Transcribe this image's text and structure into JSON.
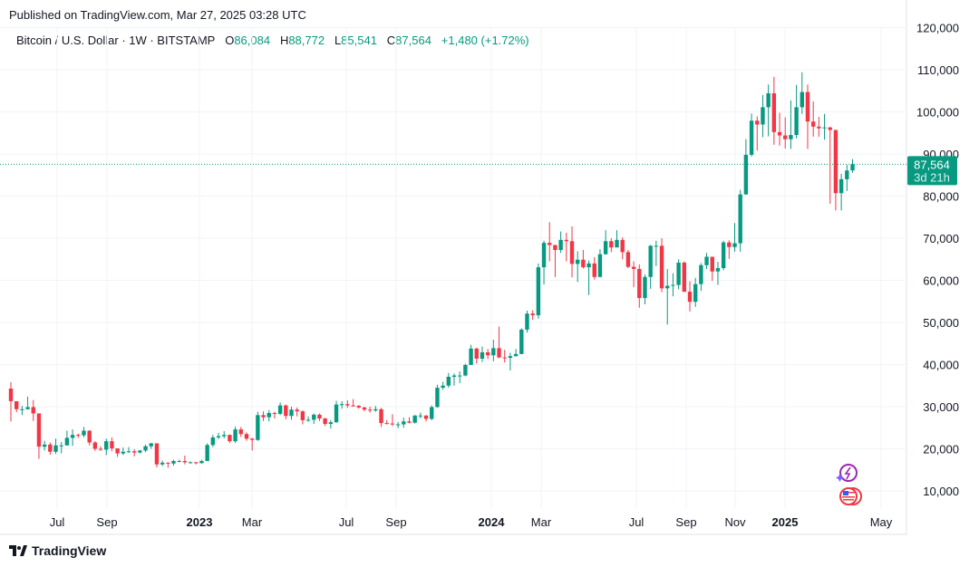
{
  "header": {
    "published": "Published on TradingView.com, Mar 27, 2025 03:28 UTC",
    "symbol": "Bitcoin / U.S. Dollar · 1W · BITSTAMP",
    "o_label": "O",
    "o_value": "86,084",
    "h_label": "H",
    "h_value": "88,772",
    "l_label": "L",
    "l_value": "85,541",
    "c_label": "C",
    "c_value": "87,564",
    "change": "+1,480 (+1.72%)"
  },
  "price_tag": {
    "price": "87,564",
    "countdown": "3d 21h"
  },
  "footer": {
    "brand": "TradingView"
  },
  "colors": {
    "up": "#089981",
    "down": "#f23645",
    "grid": "#f0f3fa",
    "text": "#131722"
  },
  "icons": [
    "lightning-event-icon",
    "us-flag-event-icon",
    "tradingview-logo-icon"
  ],
  "chart_data": {
    "type": "candlestick",
    "interval": "1W",
    "y_ticks": [
      10000,
      20000,
      30000,
      40000,
      50000,
      60000,
      70000,
      80000,
      90000,
      100000,
      110000,
      120000
    ],
    "y_tick_labels": [
      "10,000",
      "20,000",
      "30,000",
      "40,000",
      "50,000",
      "60,000",
      "70,000",
      "80,000",
      "90,000",
      "100,000",
      "110,000",
      "120,000"
    ],
    "x_tick_labels": [
      "Jul",
      "Sep",
      "2023",
      "Mar",
      "Jul",
      "Sep",
      "2024",
      "Mar",
      "Jul",
      "Sep",
      "Nov",
      "2025",
      "May"
    ],
    "last_price": 87564,
    "grid": true,
    "candles_ohlc": [
      [
        34300,
        35800,
        26500,
        31300
      ],
      [
        31300,
        31000,
        28700,
        29400
      ],
      [
        29400,
        30200,
        28000,
        29400
      ],
      [
        29400,
        32400,
        29300,
        29900
      ],
      [
        29900,
        31600,
        26600,
        28400
      ],
      [
        28400,
        28400,
        17600,
        20500
      ],
      [
        20500,
        21900,
        19600,
        21000
      ],
      [
        21000,
        21500,
        18600,
        19300
      ],
      [
        19300,
        22400,
        18800,
        20800
      ],
      [
        20800,
        21600,
        18900,
        20800
      ],
      [
        20800,
        24300,
        20800,
        22600
      ],
      [
        22600,
        24600,
        20700,
        23300
      ],
      [
        23300,
        23600,
        22600,
        23200
      ],
      [
        23200,
        25200,
        22700,
        24300
      ],
      [
        24300,
        24400,
        20800,
        21500
      ],
      [
        21500,
        21800,
        19500,
        20000
      ],
      [
        20000,
        20600,
        19500,
        19800
      ],
      [
        19800,
        22400,
        18500,
        21800
      ],
      [
        21800,
        22700,
        19400,
        20100
      ],
      [
        20100,
        19900,
        18100,
        18900
      ],
      [
        18900,
        20300,
        18500,
        19300
      ],
      [
        19300,
        20400,
        19000,
        19400
      ],
      [
        19400,
        19900,
        18200,
        19100
      ],
      [
        19100,
        19700,
        18900,
        19600
      ],
      [
        19600,
        21000,
        19200,
        20600
      ],
      [
        20600,
        21400,
        20000,
        21300
      ],
      [
        21300,
        21000,
        15600,
        16300
      ],
      [
        16300,
        17200,
        15900,
        16700
      ],
      [
        16700,
        16800,
        15500,
        16500
      ],
      [
        16500,
        17400,
        16000,
        17100
      ],
      [
        17100,
        17400,
        16800,
        17100
      ],
      [
        17100,
        18400,
        16300,
        16800
      ],
      [
        16800,
        17000,
        16500,
        16800
      ],
      [
        16800,
        16900,
        16300,
        16600
      ],
      [
        16600,
        17400,
        16500,
        17100
      ],
      [
        17100,
        21300,
        17100,
        20900
      ],
      [
        20900,
        23300,
        20400,
        22700
      ],
      [
        22700,
        23800,
        22300,
        23000
      ],
      [
        23000,
        24200,
        22500,
        23300
      ],
      [
        23300,
        23400,
        21400,
        21800
      ],
      [
        21800,
        25300,
        21400,
        24600
      ],
      [
        24600,
        25200,
        22800,
        23500
      ],
      [
        23500,
        23900,
        21900,
        22400
      ],
      [
        22400,
        22600,
        19600,
        22100
      ],
      [
        22100,
        28800,
        21900,
        28000
      ],
      [
        28000,
        28900,
        26600,
        27500
      ],
      [
        27500,
        29200,
        26500,
        28500
      ],
      [
        28500,
        28800,
        27200,
        28300
      ],
      [
        28300,
        31000,
        28000,
        30300
      ],
      [
        30300,
        30500,
        27000,
        27800
      ],
      [
        27800,
        30000,
        26900,
        29300
      ],
      [
        29300,
        29800,
        27700,
        28900
      ],
      [
        28900,
        29100,
        25800,
        26800
      ],
      [
        26800,
        27700,
        26400,
        26900
      ],
      [
        26900,
        28400,
        25900,
        28100
      ],
      [
        28100,
        28400,
        26600,
        27200
      ],
      [
        27200,
        27400,
        25400,
        25900
      ],
      [
        25900,
        26800,
        24800,
        26300
      ],
      [
        26300,
        31400,
        26200,
        30500
      ],
      [
        30500,
        31300,
        29500,
        30600
      ],
      [
        30600,
        31500,
        29700,
        30300
      ],
      [
        30300,
        31800,
        30000,
        30200
      ],
      [
        30200,
        30400,
        29500,
        29800
      ],
      [
        29800,
        30000,
        28900,
        29300
      ],
      [
        29300,
        30000,
        28600,
        29100
      ],
      [
        29100,
        30200,
        28800,
        29400
      ],
      [
        29400,
        29700,
        25200,
        26100
      ],
      [
        26100,
        26800,
        25800,
        26000
      ],
      [
        26000,
        28200,
        25400,
        25800
      ],
      [
        25800,
        26400,
        24900,
        25800
      ],
      [
        25800,
        27400,
        25000,
        26500
      ],
      [
        26500,
        27500,
        26000,
        26200
      ],
      [
        26200,
        28000,
        26000,
        27900
      ],
      [
        27900,
        28600,
        27200,
        27900
      ],
      [
        27900,
        28000,
        26500,
        27100
      ],
      [
        27100,
        30300,
        26800,
        29900
      ],
      [
        29900,
        35200,
        29800,
        34500
      ],
      [
        34500,
        35900,
        34000,
        35000
      ],
      [
        35000,
        38000,
        34500,
        37100
      ],
      [
        37100,
        37900,
        35000,
        37400
      ],
      [
        37400,
        38400,
        35600,
        37400
      ],
      [
        37400,
        40200,
        37200,
        39900
      ],
      [
        39900,
        44700,
        39900,
        43800
      ],
      [
        43800,
        44000,
        40200,
        41400
      ],
      [
        41400,
        44300,
        40600,
        42900
      ],
      [
        42900,
        43700,
        41300,
        42200
      ],
      [
        42200,
        45900,
        40800,
        43900
      ],
      [
        43900,
        49000,
        41500,
        41700
      ],
      [
        41700,
        43500,
        40500,
        41600
      ],
      [
        41600,
        42800,
        38600,
        42000
      ],
      [
        42000,
        43700,
        41900,
        42500
      ],
      [
        42500,
        48600,
        42500,
        48300
      ],
      [
        48300,
        52800,
        47600,
        52100
      ],
      [
        52100,
        52900,
        50600,
        51700
      ],
      [
        51700,
        64000,
        50900,
        63100
      ],
      [
        63100,
        69400,
        59000,
        68900
      ],
      [
        68900,
        73800,
        64500,
        68400
      ],
      [
        68400,
        68100,
        60800,
        67200
      ],
      [
        67200,
        71600,
        66500,
        69600
      ],
      [
        69600,
        71300,
        64500,
        69300
      ],
      [
        69300,
        72800,
        60700,
        63900
      ],
      [
        63900,
        66900,
        59600,
        64900
      ],
      [
        64900,
        67200,
        62800,
        63100
      ],
      [
        63100,
        64700,
        56500,
        64000
      ],
      [
        64000,
        65500,
        60200,
        60800
      ],
      [
        60800,
        67400,
        60700,
        66200
      ],
      [
        66200,
        71900,
        66100,
        69300
      ],
      [
        69300,
        70000,
        66700,
        67800
      ],
      [
        67800,
        71900,
        68500,
        69600
      ],
      [
        69600,
        70200,
        65000,
        66700
      ],
      [
        66700,
        67200,
        62900,
        63200
      ],
      [
        63200,
        64500,
        58400,
        62700
      ],
      [
        62700,
        63800,
        53500,
        55800
      ],
      [
        55800,
        61400,
        54300,
        60800
      ],
      [
        60800,
        68400,
        58000,
        68200
      ],
      [
        68200,
        69400,
        63400,
        68200
      ],
      [
        68200,
        70000,
        57200,
        58100
      ],
      [
        58100,
        62700,
        49500,
        58700
      ],
      [
        58700,
        61700,
        56200,
        58900
      ],
      [
        58900,
        65000,
        57900,
        64200
      ],
      [
        64200,
        64500,
        57200,
        57300
      ],
      [
        57300,
        59800,
        52600,
        54900
      ],
      [
        54900,
        60600,
        53700,
        59100
      ],
      [
        59100,
        64100,
        57500,
        63600
      ],
      [
        63600,
        66500,
        62700,
        65600
      ],
      [
        65600,
        65500,
        59900,
        62100
      ],
      [
        62100,
        64400,
        58900,
        62900
      ],
      [
        62900,
        69400,
        62400,
        69000
      ],
      [
        69000,
        69500,
        65100,
        67900
      ],
      [
        67900,
        73600,
        66800,
        68800
      ],
      [
        68800,
        81500,
        66800,
        80400
      ],
      [
        80400,
        93500,
        80300,
        89800
      ],
      [
        89800,
        99600,
        89400,
        97900
      ],
      [
        97900,
        98900,
        90800,
        97000
      ],
      [
        97000,
        104000,
        94000,
        101100
      ],
      [
        101100,
        106500,
        94200,
        104400
      ],
      [
        104400,
        108300,
        92200,
        95200
      ],
      [
        95200,
        99800,
        92000,
        94400
      ],
      [
        94400,
        98700,
        91300,
        93500
      ],
      [
        93500,
        102700,
        91200,
        94500
      ],
      [
        94500,
        106400,
        93700,
        101100
      ],
      [
        101100,
        109400,
        99500,
        104700
      ],
      [
        104700,
        106500,
        91200,
        97700
      ],
      [
        97700,
        102500,
        94100,
        96500
      ],
      [
        96500,
        98800,
        94100,
        96100
      ],
      [
        96100,
        99500,
        93400,
        96300
      ],
      [
        96300,
        96500,
        78200,
        95700
      ],
      [
        95700,
        94000,
        76600,
        80700
      ],
      [
        80700,
        85300,
        76600,
        84000
      ],
      [
        84000,
        87400,
        81200,
        86084
      ],
      [
        86084,
        88772,
        85541,
        87564
      ]
    ]
  }
}
